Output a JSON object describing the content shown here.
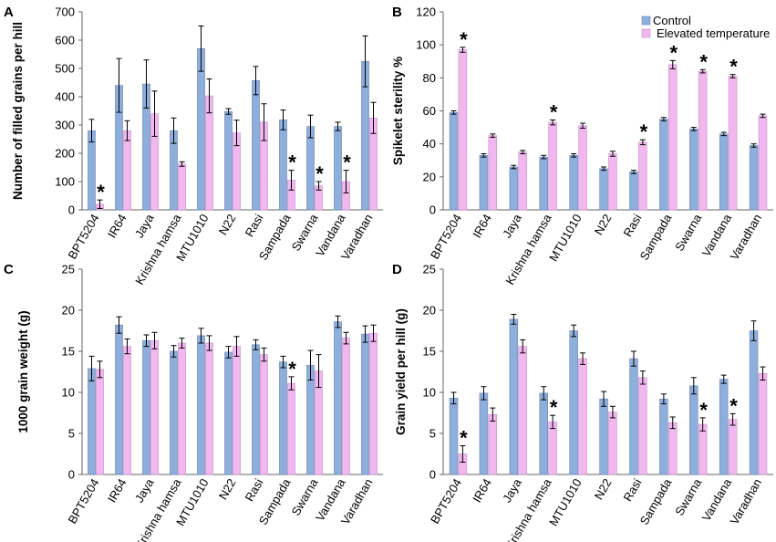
{
  "figure_colors": {
    "control": "#8eaedc",
    "elevated": "#f1b8ef",
    "control_edge": "#6a86b8",
    "elevated_edge": "#c98ccc"
  },
  "chart_data": [
    {
      "id": "A",
      "panel_label": "A",
      "type": "bar",
      "ylabel": "Number of filled grains per hill",
      "ylim": [
        0,
        700
      ],
      "yticks": [
        "0",
        "100",
        "200",
        "300",
        "400",
        "500",
        "600",
        "700"
      ],
      "categories": [
        "BPT5204",
        "IR64",
        "Jaya",
        "Krishna hamsa",
        "MTU1010",
        "N22",
        "Rasi",
        "Sampada",
        "Swarna",
        "Vandana",
        "Varadhan"
      ],
      "series": [
        {
          "name": "Control",
          "values": [
            280,
            440,
            445,
            280,
            570,
            348,
            457,
            318,
            295,
            295,
            525
          ],
          "errors": [
            40,
            95,
            85,
            45,
            80,
            10,
            50,
            35,
            40,
            15,
            90
          ]
        },
        {
          "name": "Elevated temperature",
          "values": [
            20,
            280,
            340,
            162,
            403,
            272,
            310,
            105,
            85,
            100,
            325
          ],
          "errors": [
            15,
            35,
            80,
            8,
            60,
            45,
            65,
            35,
            15,
            40,
            55
          ]
        }
      ],
      "significant": [
        true,
        false,
        false,
        false,
        false,
        false,
        false,
        true,
        true,
        true,
        false
      ],
      "annotations": [
        "*",
        "*",
        "*",
        "*"
      ],
      "legend": null
    },
    {
      "id": "B",
      "panel_label": "B",
      "type": "bar",
      "ylabel": "Spikelet sterility %",
      "ylim": [
        0,
        120
      ],
      "yticks": [
        "0",
        "20",
        "40",
        "60",
        "80",
        "100",
        "120"
      ],
      "categories": [
        "BPT5204",
        "IR64",
        "Jaya",
        "Krishna hamsa",
        "MTU1010",
        "N22",
        "Rasi",
        "Sampada",
        "Swarna",
        "Vandana",
        "Varadhan"
      ],
      "series": [
        {
          "name": "Control",
          "values": [
            59,
            33,
            26,
            32,
            33,
            25,
            23,
            55,
            49,
            46,
            39
          ],
          "errors": [
            1,
            1,
            1,
            1,
            1,
            1,
            1,
            1,
            1,
            1,
            1
          ]
        },
        {
          "name": "Elevated temperature",
          "values": [
            97,
            45,
            35,
            53,
            51,
            34,
            41,
            88,
            84,
            81,
            57
          ],
          "errors": [
            1.5,
            1,
            1,
            1.5,
            1.5,
            1.5,
            1.5,
            2.5,
            1,
            1,
            1
          ]
        }
      ],
      "significant": [
        true,
        false,
        false,
        true,
        false,
        false,
        true,
        true,
        true,
        true,
        false
      ],
      "annotations": [
        "*",
        "*",
        "*",
        "*",
        "*",
        "*"
      ],
      "legend": [
        "Control",
        "Elevated temperature"
      ]
    },
    {
      "id": "C",
      "panel_label": "C",
      "type": "bar",
      "ylabel": "1000 grain weight (g)",
      "ylim": [
        0,
        25
      ],
      "yticks": [
        "0",
        "5",
        "10",
        "15",
        "20",
        "25"
      ],
      "categories": [
        "BPT5204",
        "IR64",
        "Jaya",
        "Krishna hamsa",
        "MTU1010",
        "N22",
        "Rasi",
        "Sampada",
        "Swarna",
        "Vandana",
        "Varadhan"
      ],
      "series": [
        {
          "name": "Control",
          "values": [
            12.9,
            18.2,
            16.3,
            15.0,
            16.9,
            14.9,
            15.8,
            13.7,
            13.3,
            18.6,
            17.1
          ],
          "errors": [
            1.5,
            1.0,
            0.7,
            0.7,
            0.9,
            0.7,
            0.6,
            0.7,
            1.8,
            0.7,
            1.0
          ]
        },
        {
          "name": "Elevated temperature",
          "values": [
            12.8,
            15.6,
            16.3,
            16.0,
            16.0,
            15.6,
            14.6,
            11.1,
            12.6,
            16.6,
            17.2
          ],
          "errors": [
            1.0,
            0.9,
            1.0,
            0.6,
            0.9,
            1.2,
            0.8,
            0.8,
            2.0,
            0.7,
            1.0
          ]
        }
      ],
      "significant": [
        false,
        false,
        false,
        false,
        false,
        false,
        false,
        true,
        false,
        false,
        false
      ],
      "annotations": [
        "*"
      ],
      "legend": null
    },
    {
      "id": "D",
      "panel_label": "D",
      "type": "bar",
      "ylabel": "Grain yield per hill (g)",
      "ylim": [
        0,
        25
      ],
      "yticks": [
        "0",
        "5",
        "10",
        "15",
        "20",
        "25"
      ],
      "categories": [
        "BPT5204",
        "IR64",
        "Jaya",
        "Krishna hamsa",
        "MTU1010",
        "N22",
        "Rasi",
        "Sampada",
        "Swarna",
        "Vandana",
        "Varadhan"
      ],
      "series": [
        {
          "name": "Control",
          "values": [
            9.3,
            9.9,
            18.9,
            9.9,
            17.5,
            9.2,
            14.1,
            9.2,
            10.8,
            11.6,
            17.5
          ],
          "errors": [
            0.7,
            0.8,
            0.6,
            0.8,
            0.7,
            0.9,
            0.9,
            0.6,
            1.0,
            0.5,
            1.2
          ]
        },
        {
          "name": "Elevated temperature",
          "values": [
            2.5,
            7.3,
            15.6,
            6.4,
            14.1,
            7.6,
            11.8,
            6.3,
            6.1,
            6.7,
            12.3
          ],
          "errors": [
            1.0,
            0.8,
            0.8,
            0.8,
            0.7,
            0.7,
            0.8,
            0.7,
            0.8,
            0.7,
            0.8
          ]
        }
      ],
      "significant": [
        true,
        false,
        false,
        true,
        false,
        false,
        false,
        false,
        true,
        true,
        false
      ],
      "annotations": [
        "*",
        "*",
        "*",
        "*"
      ],
      "legend": null
    }
  ]
}
